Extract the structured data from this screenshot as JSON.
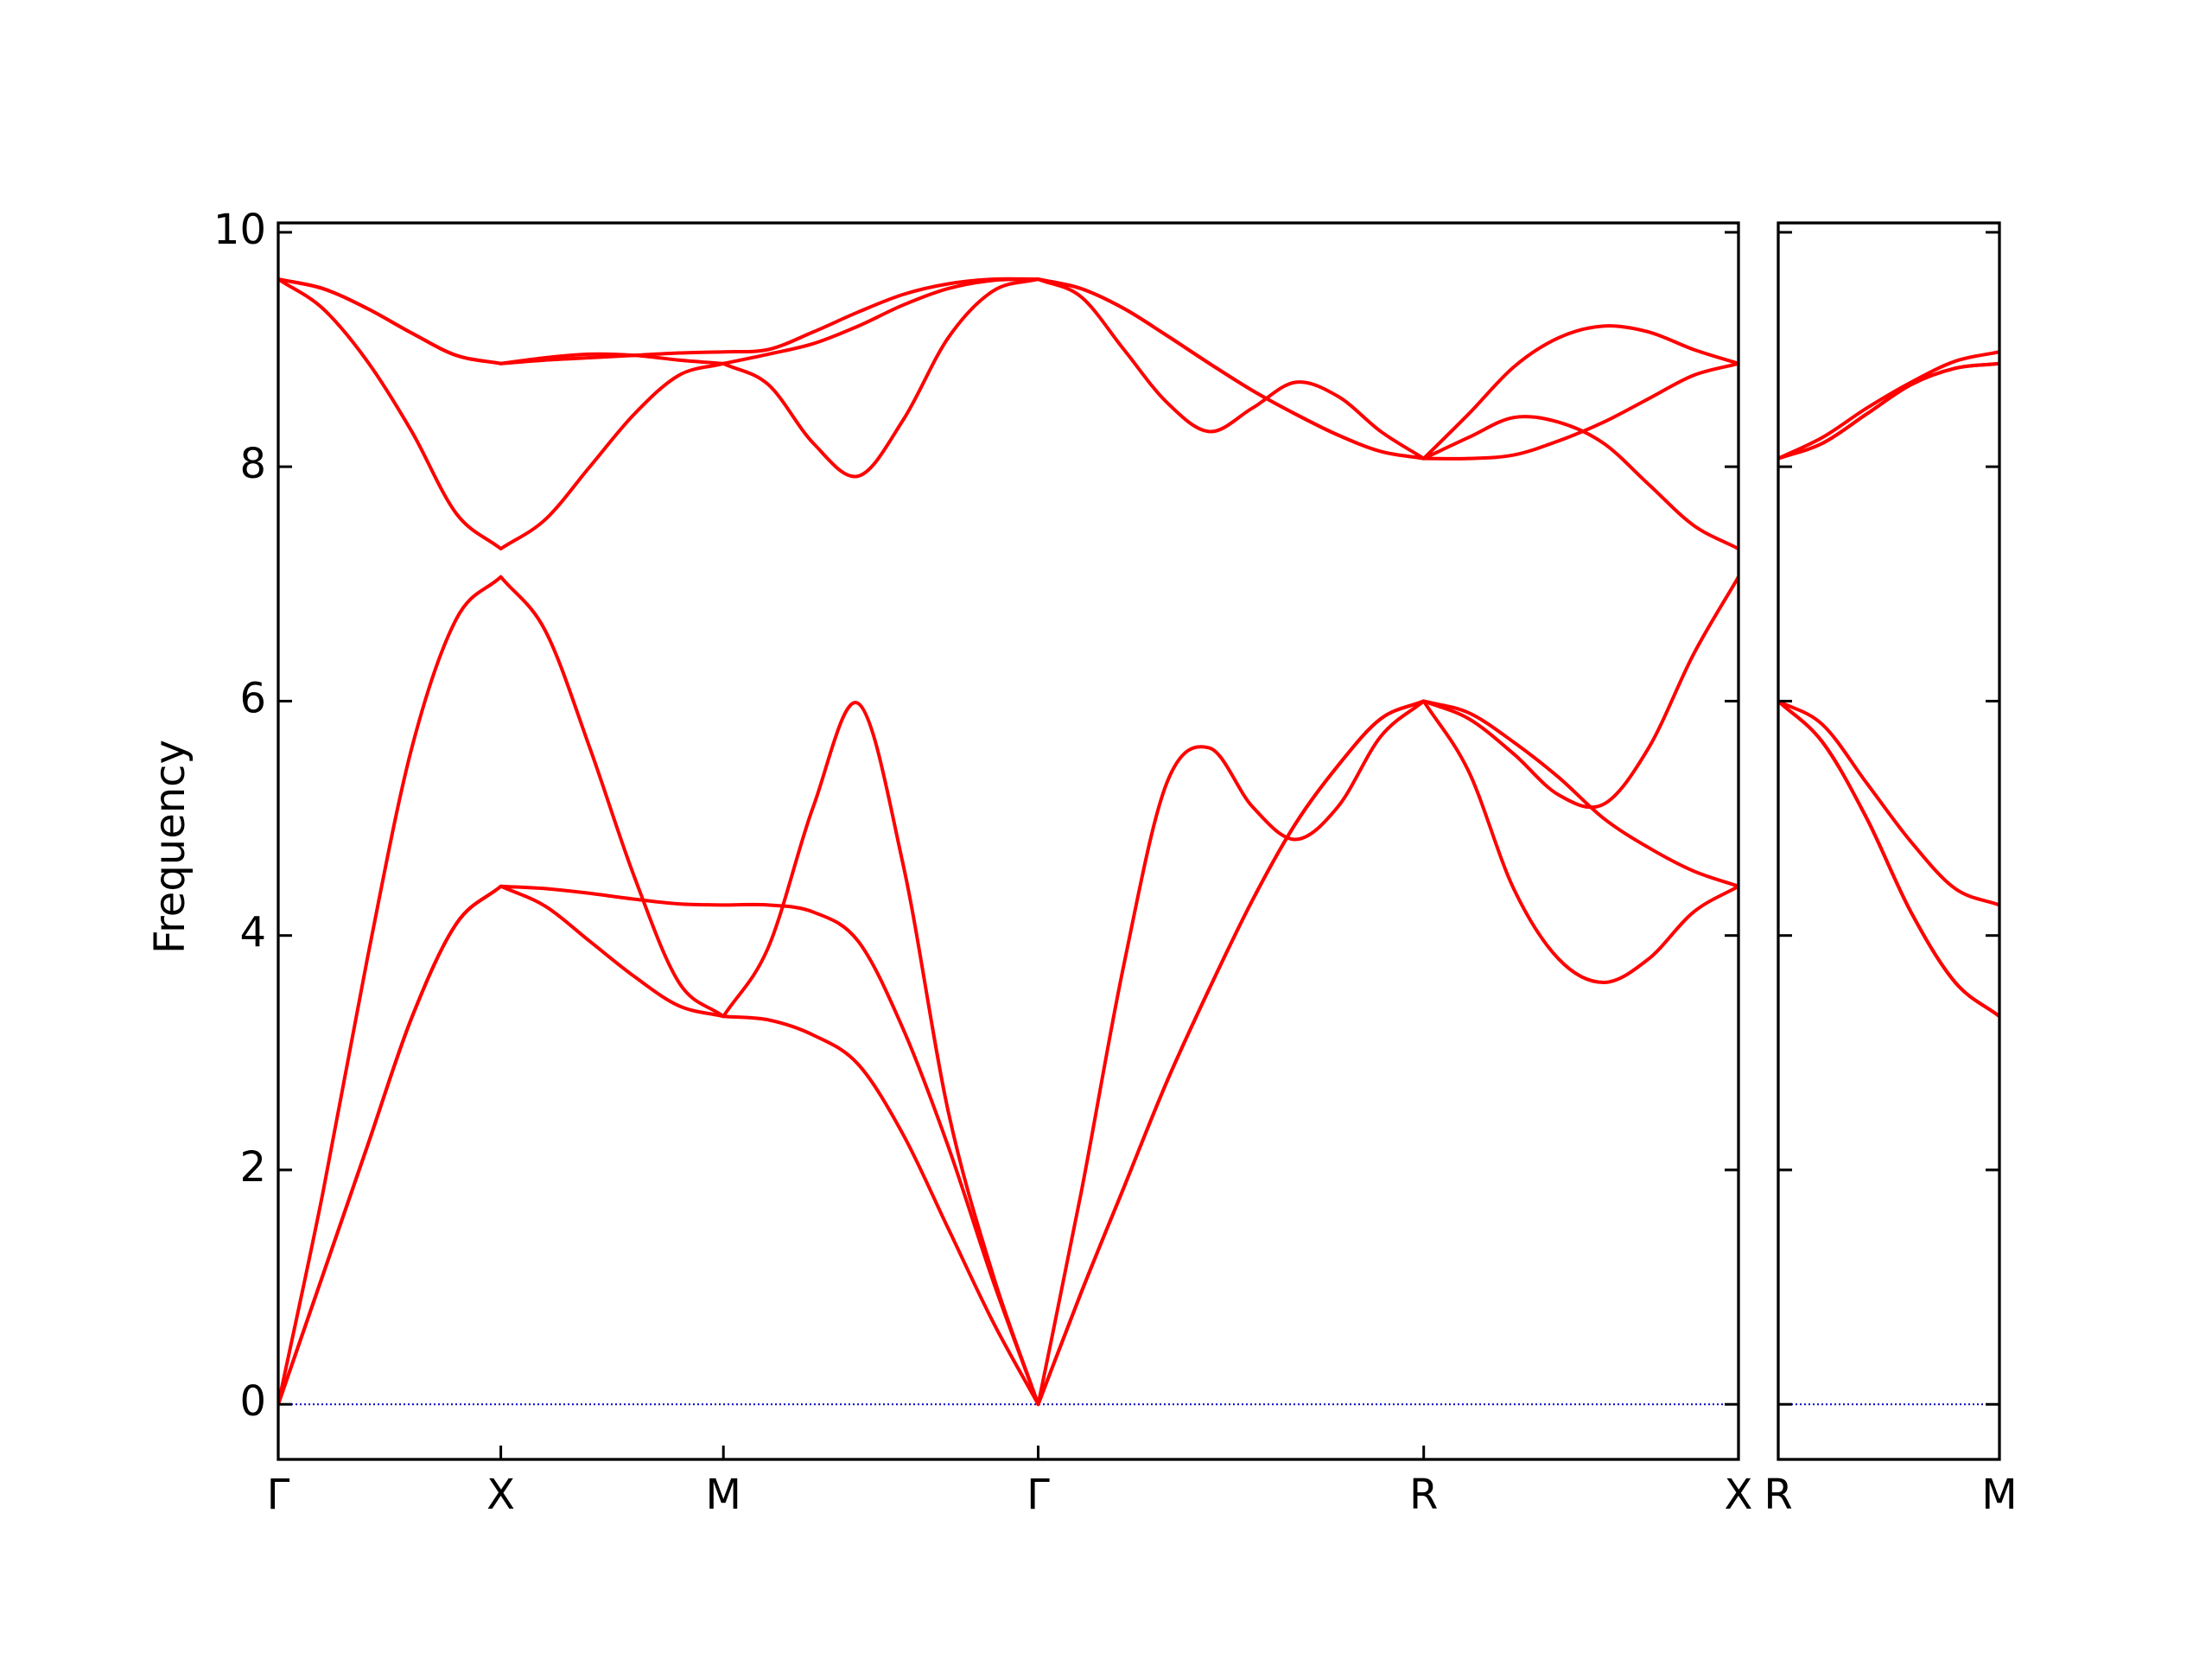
{
  "chart_data": [
    {
      "type": "line",
      "y_label": "Frequency",
      "xlim": [
        0,
        3.2802
      ],
      "ylim": [
        -0.47,
        10.08
      ],
      "xticks": [
        {
          "value": 0,
          "label": "Γ"
        },
        {
          "value": 0.5,
          "label": "X"
        },
        {
          "value": 1.0,
          "label": "M"
        },
        {
          "value": 1.7071,
          "label": "Γ"
        },
        {
          "value": 2.5731,
          "label": "R"
        },
        {
          "value": 3.2802,
          "label": "X"
        }
      ],
      "yticks": [
        0,
        2,
        4,
        6,
        8,
        10
      ],
      "show_ytick_labels": true,
      "zero_line": true,
      "zero_line_color": "#0000cc",
      "x": [
        0,
        0.1,
        0.2,
        0.3,
        0.4,
        0.5,
        0.6,
        0.7,
        0.8,
        0.9,
        1.0,
        1.101,
        1.202,
        1.303,
        1.404,
        1.505,
        1.606,
        1.7071,
        1.8033,
        1.8995,
        1.9958,
        2.092,
        2.1882,
        2.2845,
        2.3807,
        2.4769,
        2.5731,
        2.6741,
        2.7751,
        2.8761,
        2.9771,
        3.0782,
        3.1792,
        3.2802
      ],
      "series": [
        {
          "color": "#ff0000",
          "values": [
            0,
            1.1,
            2.2,
            3.3,
            4.1,
            4.42,
            4.25,
            3.95,
            3.65,
            3.4,
            3.31,
            3.28,
            3.15,
            2.9,
            2.3,
            1.5,
            0.7,
            0,
            0.95,
            1.85,
            2.75,
            3.55,
            4.3,
            4.95,
            5.45,
            5.85,
            6.0,
            5.4,
            4.4,
            3.8,
            3.6,
            3.8,
            4.2,
            4.42
          ]
        },
        {
          "color": "#ff0000",
          "values": [
            0,
            1.1,
            2.2,
            3.3,
            4.1,
            4.42,
            4.4,
            4.36,
            4.31,
            4.27,
            4.26,
            4.26,
            4.2,
            3.95,
            3.2,
            2.2,
            1.05,
            0,
            0.95,
            1.85,
            2.75,
            3.55,
            4.3,
            4.95,
            5.45,
            5.85,
            6.0,
            5.9,
            5.65,
            5.35,
            5.0,
            4.75,
            4.55,
            4.42
          ]
        },
        {
          "color": "#ff0000",
          "values": [
            0,
            1.8,
            3.8,
            5.6,
            6.7,
            7.06,
            6.6,
            5.6,
            4.5,
            3.6,
            3.31,
            3.9,
            5.1,
            5.98,
            4.6,
            2.5,
            1.1,
            0,
            1.8,
            3.75,
            5.3,
            5.6,
            5.1,
            4.82,
            5.1,
            5.7,
            6.0,
            5.85,
            5.55,
            5.2,
            5.12,
            5.6,
            6.4,
            7.06
          ]
        },
        {
          "color": "#ff0000",
          "values": [
            9.6,
            9.35,
            8.9,
            8.3,
            7.6,
            7.3,
            7.55,
            8.0,
            8.45,
            8.78,
            8.88,
            8.7,
            8.2,
            7.92,
            8.4,
            9.1,
            9.5,
            9.6,
            9.45,
            9.0,
            8.55,
            8.3,
            8.5,
            8.72,
            8.6,
            8.3,
            8.07,
            8.25,
            8.42,
            8.38,
            8.2,
            7.85,
            7.5,
            7.3
          ]
        },
        {
          "color": "#ff0000",
          "values": [
            9.6,
            9.52,
            9.35,
            9.14,
            8.95,
            8.88,
            8.93,
            8.96,
            8.95,
            8.91,
            8.88,
            8.96,
            9.05,
            9.2,
            9.38,
            9.52,
            9.59,
            9.6,
            9.52,
            9.35,
            9.12,
            8.88,
            8.65,
            8.45,
            8.27,
            8.13,
            8.07,
            8.07,
            8.1,
            8.22,
            8.38,
            8.58,
            8.78,
            8.88
          ]
        },
        {
          "color": "#ff0000",
          "values": [
            9.6,
            9.52,
            9.35,
            9.14,
            8.95,
            8.88,
            8.91,
            8.93,
            8.95,
            8.97,
            8.98,
            9.0,
            9.15,
            9.32,
            9.47,
            9.56,
            9.6,
            9.6,
            9.52,
            9.35,
            9.12,
            8.88,
            8.65,
            8.45,
            8.27,
            8.13,
            8.07,
            8.45,
            8.85,
            9.1,
            9.2,
            9.15,
            9.0,
            8.88
          ]
        }
      ]
    },
    {
      "type": "line",
      "xlim": [
        0,
        0.5
      ],
      "ylim": [
        -0.47,
        10.08
      ],
      "xticks": [
        {
          "value": 0,
          "label": "R"
        },
        {
          "value": 0.5,
          "label": "M"
        }
      ],
      "yticks": [
        0,
        2,
        4,
        6,
        8,
        10
      ],
      "show_ytick_labels": false,
      "zero_line": true,
      "zero_line_color": "#0000cc",
      "x": [
        0,
        0.1,
        0.2,
        0.3,
        0.4,
        0.5
      ],
      "series": [
        {
          "color": "#ff0000",
          "values": [
            6.0,
            5.65,
            5.0,
            4.2,
            3.6,
            3.31
          ]
        },
        {
          "color": "#ff0000",
          "values": [
            6.0,
            5.8,
            5.3,
            4.8,
            4.4,
            4.26
          ]
        },
        {
          "color": "#ff0000",
          "values": [
            6.0,
            5.65,
            5.0,
            4.2,
            3.6,
            3.31
          ]
        },
        {
          "color": "#ff0000",
          "values": [
            8.07,
            8.2,
            8.45,
            8.7,
            8.84,
            8.88
          ]
        },
        {
          "color": "#ff0000",
          "values": [
            8.07,
            8.2,
            8.45,
            8.7,
            8.84,
            8.88
          ]
        },
        {
          "color": "#ff0000",
          "values": [
            8.07,
            8.25,
            8.5,
            8.72,
            8.9,
            8.98
          ]
        }
      ]
    }
  ]
}
